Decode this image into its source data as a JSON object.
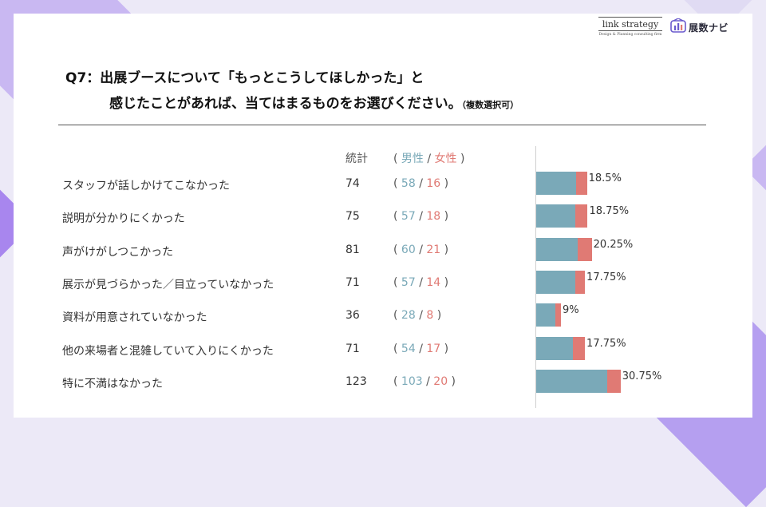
{
  "colors": {
    "male": "#7aa9b8",
    "female": "#e07a74",
    "accent": "#a886ee"
  },
  "logos": {
    "link_strategy": {
      "name": "link strategy",
      "tagline": "Design & Planning consulting firm"
    },
    "tenji_navi": {
      "name": "展数ナビ",
      "icon": "booth-chart-icon"
    }
  },
  "question": {
    "line1": "Q7：出展ブースについて「もっとこうしてほしかった」と",
    "line2": "感じたことがあれば、当てはまるものをお選びください。",
    "note": "（複数選択可）"
  },
  "table_header": {
    "total": "統計",
    "open_paren": "(",
    "male": "男性",
    "slash": "/",
    "female": "女性",
    "close_paren": ")"
  },
  "chart_data": {
    "type": "bar",
    "orientation": "horizontal",
    "stacked": true,
    "categories": [
      "スタッフが話しかけてこなかった",
      "説明が分かりにくかった",
      "声がけがしつこかった",
      "展示が見づらかった／目立っていなかった",
      "資料が用意されていなかった",
      "他の来場者と混雑していて入りにくかった",
      "特に不満はなかった"
    ],
    "totals": [
      74,
      75,
      81,
      71,
      36,
      71,
      123
    ],
    "series": [
      {
        "name": "男性",
        "values": [
          58,
          57,
          60,
          57,
          28,
          54,
          103
        ]
      },
      {
        "name": "女性",
        "values": [
          16,
          18,
          21,
          14,
          8,
          17,
          20
        ]
      }
    ],
    "percent_labels": [
      "18.5%",
      "18.75%",
      "20.25%",
      "17.75%",
      "9%",
      "17.75%",
      "30.75%"
    ],
    "legend": "top"
  }
}
